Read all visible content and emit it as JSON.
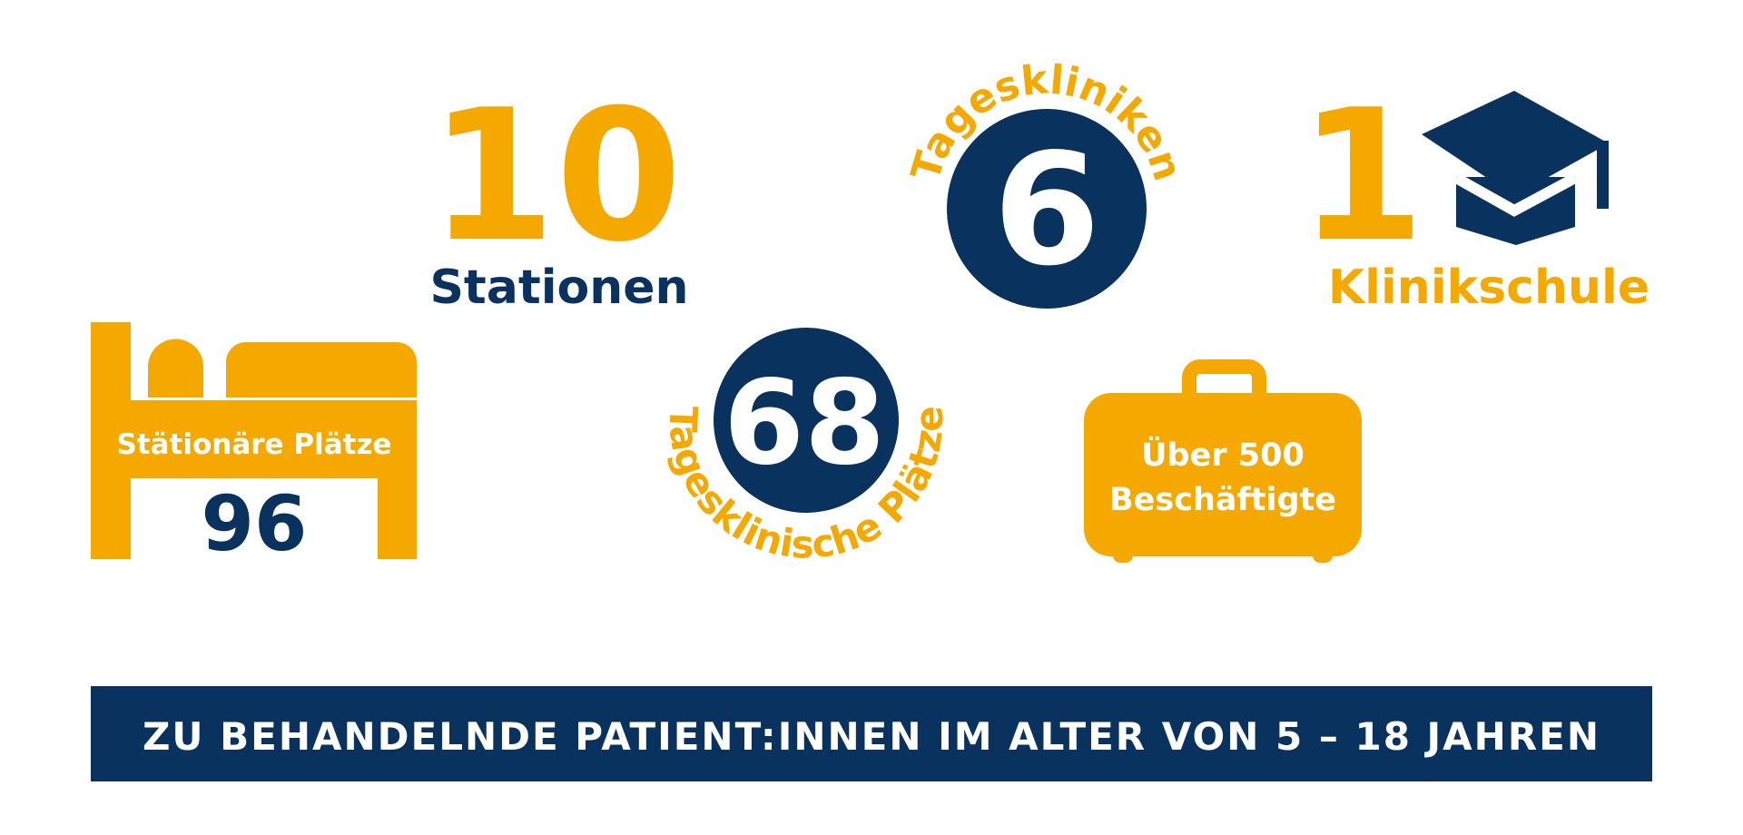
{
  "colors": {
    "orange": "#F5A800",
    "navy": "#0A325F",
    "white": "#FFFFFF"
  },
  "stations": {
    "number": "10",
    "label": "Stationen"
  },
  "day_clinics": {
    "number": "6",
    "label": "Tageskliniken"
  },
  "clinic_school": {
    "number": "1",
    "label": "Klinikschule",
    "icon": "graduation-cap-icon"
  },
  "inpatient": {
    "label": "Stätionäre Plätze",
    "number": "96",
    "icon": "bed-icon"
  },
  "day_places": {
    "number": "68",
    "label": "Tagesklinische Plätze"
  },
  "employees": {
    "line1": "Über 500",
    "line2": "Beschäftigte",
    "icon": "suitcase-icon"
  },
  "banner": {
    "text": "ZU BEHANDELNDE PATIENT:INNEN IM ALTER VON 5 – 18 JAHREN"
  }
}
